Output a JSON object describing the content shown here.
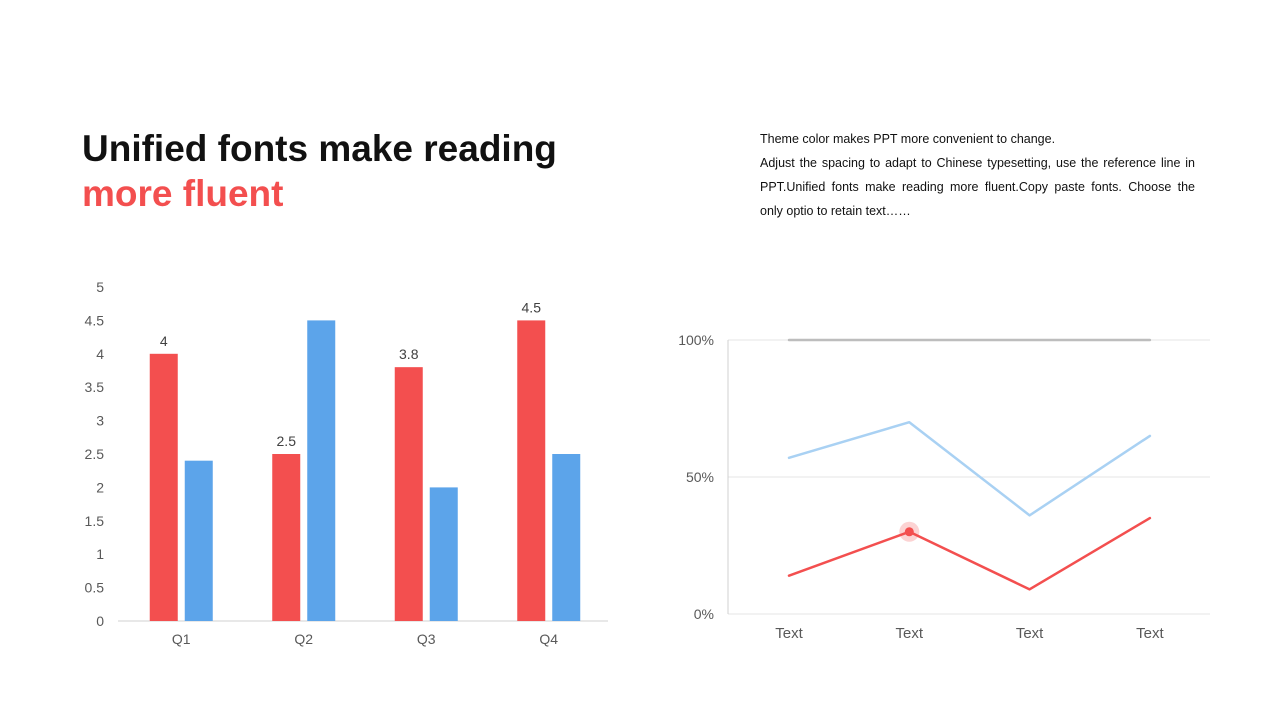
{
  "heading": {
    "line1": "Unified fonts make reading",
    "line2": "more fluent"
  },
  "description": {
    "line1": "Theme  color makes PPT more convenient  to change.",
    "line2": "Adjust the spacing to adapt to Chinese typesetting, use the reference line in PPT.Unified fonts make reading more fluent.Copy paste fonts. Choose the only optio to retain text……"
  },
  "colors": {
    "accent": "#f34f4f",
    "secondary": "#5ca4ea",
    "light_blue": "#a9d1f3",
    "gray": "#bdbdbd"
  },
  "chart_data": [
    {
      "type": "bar",
      "categories": [
        "Q1",
        "Q2",
        "Q3",
        "Q4"
      ],
      "series": [
        {
          "values": [
            4,
            2.5,
            3.8,
            4.5
          ],
          "color": "#f34f4f",
          "data_labels": [
            "4",
            "2.5",
            "3.8",
            "4.5"
          ]
        },
        {
          "values": [
            2.4,
            4.5,
            2,
            2.5
          ],
          "color": "#5ca4ea"
        }
      ],
      "ylim": [
        0,
        5
      ],
      "yticks": [
        "0",
        "0.5",
        "1",
        "1.5",
        "2",
        "2.5",
        "3",
        "3.5",
        "4",
        "4.5",
        "5"
      ],
      "grid": false
    },
    {
      "type": "line",
      "categories": [
        "Text",
        "Text",
        "Text",
        "Text"
      ],
      "series": [
        {
          "values": [
            100,
            100,
            100,
            100
          ],
          "color": "#bdbdbd"
        },
        {
          "values": [
            57,
            70,
            36,
            65
          ],
          "color": "#a9d1f3"
        },
        {
          "values": [
            14,
            30,
            9,
            35
          ],
          "color": "#f34f4f",
          "highlight_index": 1
        }
      ],
      "ylim": [
        0,
        100
      ],
      "yticks": [
        "0%",
        "50%",
        "100%"
      ],
      "grid": true
    }
  ]
}
